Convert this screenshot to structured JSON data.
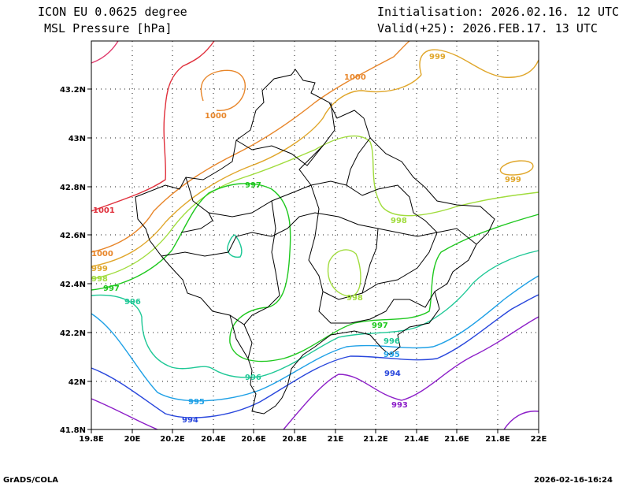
{
  "header": {
    "model": "ICON EU 0.0625 degree",
    "field": "MSL Pressure [hPa]",
    "init": "Initialisation: 2026.02.16. 12 UTC",
    "valid": "Valid(+25): 2026.FEB.17. 13 UTC"
  },
  "footer": {
    "credit": "GrADS/COLA",
    "timestamp": "2026-02-16-16:24"
  },
  "axes": {
    "x_ticks": [
      "19.8E",
      "20E",
      "20.2E",
      "20.4E",
      "20.6E",
      "20.8E",
      "21E",
      "21.2E",
      "21.4E",
      "21.6E",
      "21.8E",
      "22E"
    ],
    "y_ticks": [
      "43.2N",
      "43N",
      "42.8N",
      "42.6N",
      "42.4N",
      "42.2N",
      "42N",
      "41.8N"
    ]
  },
  "contour_labels": [
    {
      "text": "1001",
      "color": "#e0303c"
    },
    {
      "text": "1000",
      "color": "#e8862a"
    },
    {
      "text": "1000",
      "color": "#e8862a"
    },
    {
      "text": "1000",
      "color": "#e8862a"
    },
    {
      "text": "999",
      "color": "#e0a62a"
    },
    {
      "text": "999",
      "color": "#e0a62a"
    },
    {
      "text": "999",
      "color": "#e0a62a"
    },
    {
      "text": "998",
      "color": "#a0dc3c"
    },
    {
      "text": "998",
      "color": "#a0dc3c"
    },
    {
      "text": "998",
      "color": "#a0dc3c"
    },
    {
      "text": "997",
      "color": "#1ec81e"
    },
    {
      "text": "997",
      "color": "#1ec81e"
    },
    {
      "text": "997",
      "color": "#1ec81e"
    },
    {
      "text": "996",
      "color": "#1ec896"
    },
    {
      "text": "996",
      "color": "#1ec896"
    },
    {
      "text": "996",
      "color": "#1ec896"
    },
    {
      "text": "995",
      "color": "#1ea0e6"
    },
    {
      "text": "995",
      "color": "#1ea0e6"
    },
    {
      "text": "994",
      "color": "#2846dc"
    },
    {
      "text": "994",
      "color": "#2846dc"
    },
    {
      "text": "993",
      "color": "#8c1ec8"
    }
  ]
}
